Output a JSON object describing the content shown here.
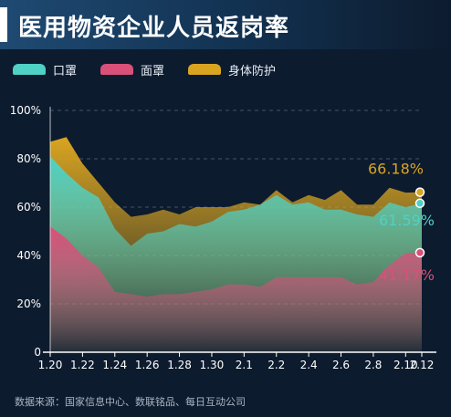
{
  "title": "医用物资企业人员返岗率",
  "source": "数据来源：国家信息中心、数联铭品、每日互动公司",
  "legend": [
    {
      "label": "口罩",
      "color": "#4fd1c5"
    },
    {
      "label": "面罩",
      "color": "#d9507a"
    },
    {
      "label": "身体防护",
      "color": "#d9a521"
    }
  ],
  "chart_data": {
    "type": "area",
    "x_ticks": [
      "1.20",
      "1.22",
      "1.24",
      "1.26",
      "1.28",
      "1.30",
      "2.1",
      "2.2",
      "2.4",
      "2.6",
      "2.8",
      "2.10",
      "2.12"
    ],
    "y_ticks": [
      "0",
      "20%",
      "40%",
      "60%",
      "80%",
      "100%"
    ],
    "ylim": [
      0,
      100
    ],
    "series": [
      {
        "name": "身体防护",
        "color": "#d9a521",
        "values": [
          87,
          89,
          78,
          70,
          62,
          56,
          57,
          59,
          57,
          60,
          60,
          60,
          62,
          61,
          67,
          62,
          65,
          63,
          67,
          61,
          61,
          68,
          66,
          66.18
        ],
        "end_label": "66.18%"
      },
      {
        "name": "口罩",
        "color": "#4fd1c5",
        "values": [
          81,
          74,
          68,
          64,
          51,
          44,
          49,
          50,
          53,
          52,
          54,
          58,
          59,
          61,
          65,
          61,
          62,
          59,
          59,
          57,
          56,
          62,
          60,
          61.59
        ],
        "end_label": "61.59%"
      },
      {
        "name": "面罩",
        "color": "#d9507a",
        "values": [
          52,
          47,
          40,
          35,
          25,
          24,
          23,
          24,
          24,
          25,
          26,
          28,
          28,
          27,
          31,
          31,
          31,
          31,
          31,
          28,
          29,
          36,
          41,
          41.17
        ],
        "end_label": "41.17%"
      }
    ]
  }
}
